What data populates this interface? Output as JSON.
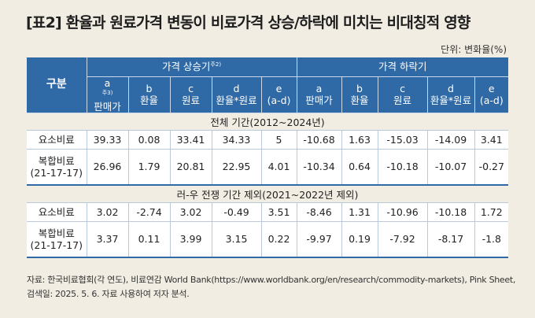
{
  "title": "[표2] 환율과 원료가격 변동이 비료가격 상승/하락에 미치는 비대칭적 영향",
  "unit": "단위: 변화율(%)",
  "header": {
    "gubun": "구분",
    "rise_group": "가격 상승기",
    "rise_note": "주2)",
    "fall_group": "가격 하락기",
    "columns": [
      {
        "top": "a",
        "note": "주3)",
        "bottom": "판매가"
      },
      {
        "top": "b",
        "note": "",
        "bottom": "환율"
      },
      {
        "top": "c",
        "note": "",
        "bottom": "원료"
      },
      {
        "top": "d",
        "note": "",
        "bottom": "환율*원료"
      },
      {
        "top": "e",
        "note": "",
        "bottom": "(a-d)"
      },
      {
        "top": "a",
        "note": "",
        "bottom": "판매가"
      },
      {
        "top": "b",
        "note": "",
        "bottom": "환율"
      },
      {
        "top": "c",
        "note": "",
        "bottom": "원료"
      },
      {
        "top": "d",
        "note": "",
        "bottom": "환율*원료"
      },
      {
        "top": "e",
        "note": "",
        "bottom": "(a-d)"
      }
    ]
  },
  "sections": [
    {
      "period": "전체 기간(2012~2024년)",
      "rows": [
        {
          "label1": "요소비료",
          "label2": "",
          "values": [
            "39.33",
            "0.08",
            "33.41",
            "34.33",
            "5",
            "-10.68",
            "1.63",
            "-15.03",
            "-14.09",
            "3.41"
          ]
        },
        {
          "label1": "복합비료",
          "label2": "(21-17-17)",
          "values": [
            "26.96",
            "1.79",
            "20.81",
            "22.95",
            "4.01",
            "-10.34",
            "0.64",
            "-10.18",
            "-10.07",
            "-0.27"
          ]
        }
      ]
    },
    {
      "period": "러-우 전쟁 기간 제외(2021~2022년 제외)",
      "rows": [
        {
          "label1": "요소비료",
          "label2": "",
          "values": [
            "3.02",
            "-2.74",
            "3.02",
            "-0.49",
            "3.51",
            "-8.46",
            "1.31",
            "-10.96",
            "-10.18",
            "1.72"
          ]
        },
        {
          "label1": "복합비료",
          "label2": "(21-17-17)",
          "values": [
            "3.37",
            "0.11",
            "3.99",
            "3.15",
            "0.22",
            "-9.97",
            "0.19",
            "-7.92",
            "-8.17",
            "-1.8"
          ]
        }
      ]
    }
  ],
  "source": {
    "line1": "자료: 한국비료협회(각 연도), 비료연감 World Bank(https://www.worldbank.org/en/research/commodity-markets), Pink Sheet,",
    "line2": "검색일: 2025. 5. 6. 자료 사용하여 저자 분석."
  },
  "colors": {
    "header_bg": "#2f6aa6",
    "page_bg": "#f2ede3",
    "cell_bg": "#ffffff"
  }
}
